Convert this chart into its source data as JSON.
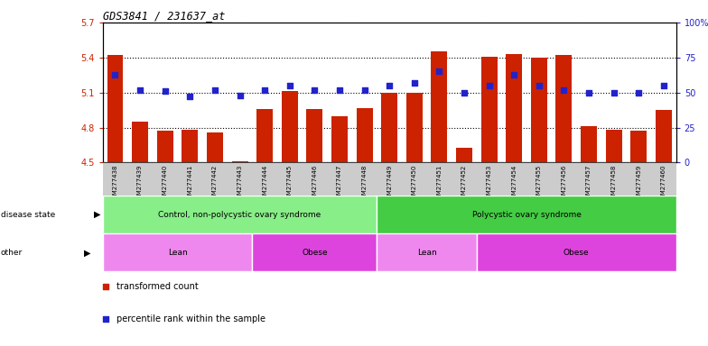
{
  "title": "GDS3841 / 231637_at",
  "samples": [
    "GSM277438",
    "GSM277439",
    "GSM277440",
    "GSM277441",
    "GSM277442",
    "GSM277443",
    "GSM277444",
    "GSM277445",
    "GSM277446",
    "GSM277447",
    "GSM277448",
    "GSM277449",
    "GSM277450",
    "GSM277451",
    "GSM277452",
    "GSM277453",
    "GSM277454",
    "GSM277455",
    "GSM277456",
    "GSM277457",
    "GSM277458",
    "GSM277459",
    "GSM277460"
  ],
  "bar_values": [
    5.42,
    4.85,
    4.77,
    4.78,
    4.76,
    4.51,
    4.96,
    5.11,
    4.96,
    4.9,
    4.97,
    5.1,
    5.1,
    5.45,
    4.63,
    5.41,
    5.43,
    5.4,
    5.42,
    4.81,
    4.78,
    4.77,
    4.95
  ],
  "percentile_values": [
    63,
    52,
    51,
    47,
    52,
    48,
    52,
    55,
    52,
    52,
    52,
    55,
    57,
    65,
    50,
    55,
    63,
    55,
    52,
    50,
    50,
    50,
    55
  ],
  "ymin": 4.5,
  "ymax": 5.7,
  "bar_color": "#cc2200",
  "pct_color": "#2222cc",
  "tick_bg_color": "#cccccc",
  "white": "#ffffff",
  "disease_state_groups": [
    {
      "label": "Control, non-polycystic ovary syndrome",
      "start": 0,
      "end": 11,
      "color": "#88ee88"
    },
    {
      "label": "Polycystic ovary syndrome",
      "start": 11,
      "end": 23,
      "color": "#44cc44"
    }
  ],
  "other_groups": [
    {
      "label": "Lean",
      "start": 0,
      "end": 6,
      "color": "#ee88ee"
    },
    {
      "label": "Obese",
      "start": 6,
      "end": 11,
      "color": "#dd44dd"
    },
    {
      "label": "Lean",
      "start": 11,
      "end": 15,
      "color": "#ee88ee"
    },
    {
      "label": "Obese",
      "start": 15,
      "end": 23,
      "color": "#dd44dd"
    }
  ],
  "legend_items": [
    {
      "label": "transformed count",
      "color": "#cc2200"
    },
    {
      "label": "percentile rank within the sample",
      "color": "#2222cc"
    }
  ],
  "yticks": [
    4.5,
    4.8,
    5.1,
    5.4,
    5.7
  ],
  "ytick_labels": [
    "4.5",
    "4.8",
    "5.1",
    "5.4",
    "5.7"
  ],
  "pct_ticks": [
    0,
    25,
    50,
    75,
    100
  ],
  "pct_tick_labels": [
    "0",
    "25",
    "50",
    "75",
    "100%"
  ]
}
